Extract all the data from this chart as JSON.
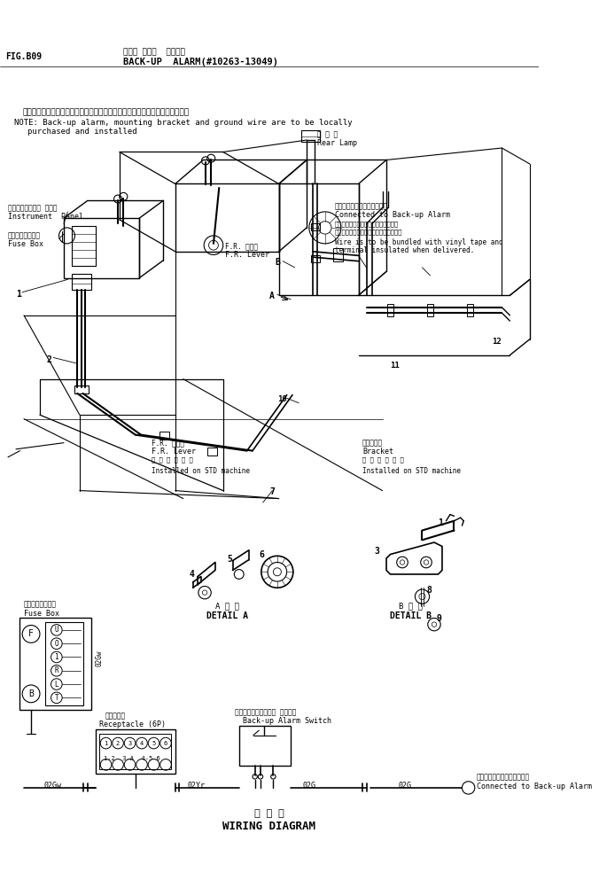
{
  "title_jp": "バック アップ  アラーム",
  "title_en": "BACK-UP  ALARM(#10263-13049)",
  "fig_label": "FIG.B09",
  "bg_color": "#ffffff",
  "line_color": "#000000",
  "note_jp": "注）バックアップアラーム，取付ブラケット，アース線等は現地装着とする．",
  "note_en1": "NOTE: Back-up alarm, mounting bracket and ground wire are to be locally",
  "note_en2": "        purchased and installed",
  "wiring_diagram_jp": "結 線 図",
  "wiring_diagram_en": "WIRING DIAGRAM",
  "label_instrument_panel_jp": "インストルメント パネル",
  "label_instrument_panel_en": "Instrument  Panel",
  "label_fuse_box_jp1": "ヒューズボックス",
  "label_fuse_box_en1": "Fuse Box",
  "label_rear_lamp_jp": "後 照 灯",
  "label_rear_lamp_en": "Rear Lamp",
  "label_connected_jp": "バックアップアラームに接続",
  "label_connected_en": "Connected to Back-up Alarm",
  "label_wire_note_jp1": "出荷時はビニールテープにてワイヤを",
  "label_wire_note_jp2": "まとめておき端子は絶縁しておくこと．",
  "label_wire_note_en1": "Wire is to be bundled with vinyl tape and",
  "label_wire_note_en2": "terminal insulated when delivered.",
  "label_fr_lever_jp": "F.R. レバー",
  "label_fr_lever_en": "F.R. Lever",
  "label_fr_lever2_jp": "F.R. レバー",
  "label_fr_lever2_en": "F.R. Lever",
  "label_std_machine_jp": "標 準 車 装 着 品",
  "label_std_machine": "Installed on STD machine",
  "label_bracket_jp": "ブラケット",
  "label_bracket_en": "Bracket",
  "label_std_machine_jp2": "標 準 車 装 着 品",
  "label_std_machine2": "Installed on STD machine",
  "label_fuse_box_jp2": "ヒューズボックス",
  "label_fuse_box_en2": "Fuse Box",
  "label_receptacle_jp": "コンセント",
  "label_receptacle_en": "Receptacle (6P)",
  "label_backup_switch_jp": "バックアップアラーム スイッチ",
  "label_backup_switch_en": "Back-up Alarm Switch",
  "label_connected2_jp": "バックアップアラームに接続",
  "label_connected2_en": "Connected to Back-up Alarm",
  "label_detail_a_jp": "A 詳 細",
  "label_detail_a_en": "DETAIL A",
  "label_detail_b_jp": "B 詳 細",
  "label_detail_b_en": "DETAIL B",
  "wire_labels": [
    "02Gw",
    "02Yr",
    "02G",
    "02G"
  ],
  "fuse_labels_right": [
    "U",
    "O",
    "1",
    "R",
    "L",
    "T"
  ],
  "fuse_labels_left_f": "F",
  "fuse_labels_left_b": "B",
  "wire_label_side": "02Gw"
}
